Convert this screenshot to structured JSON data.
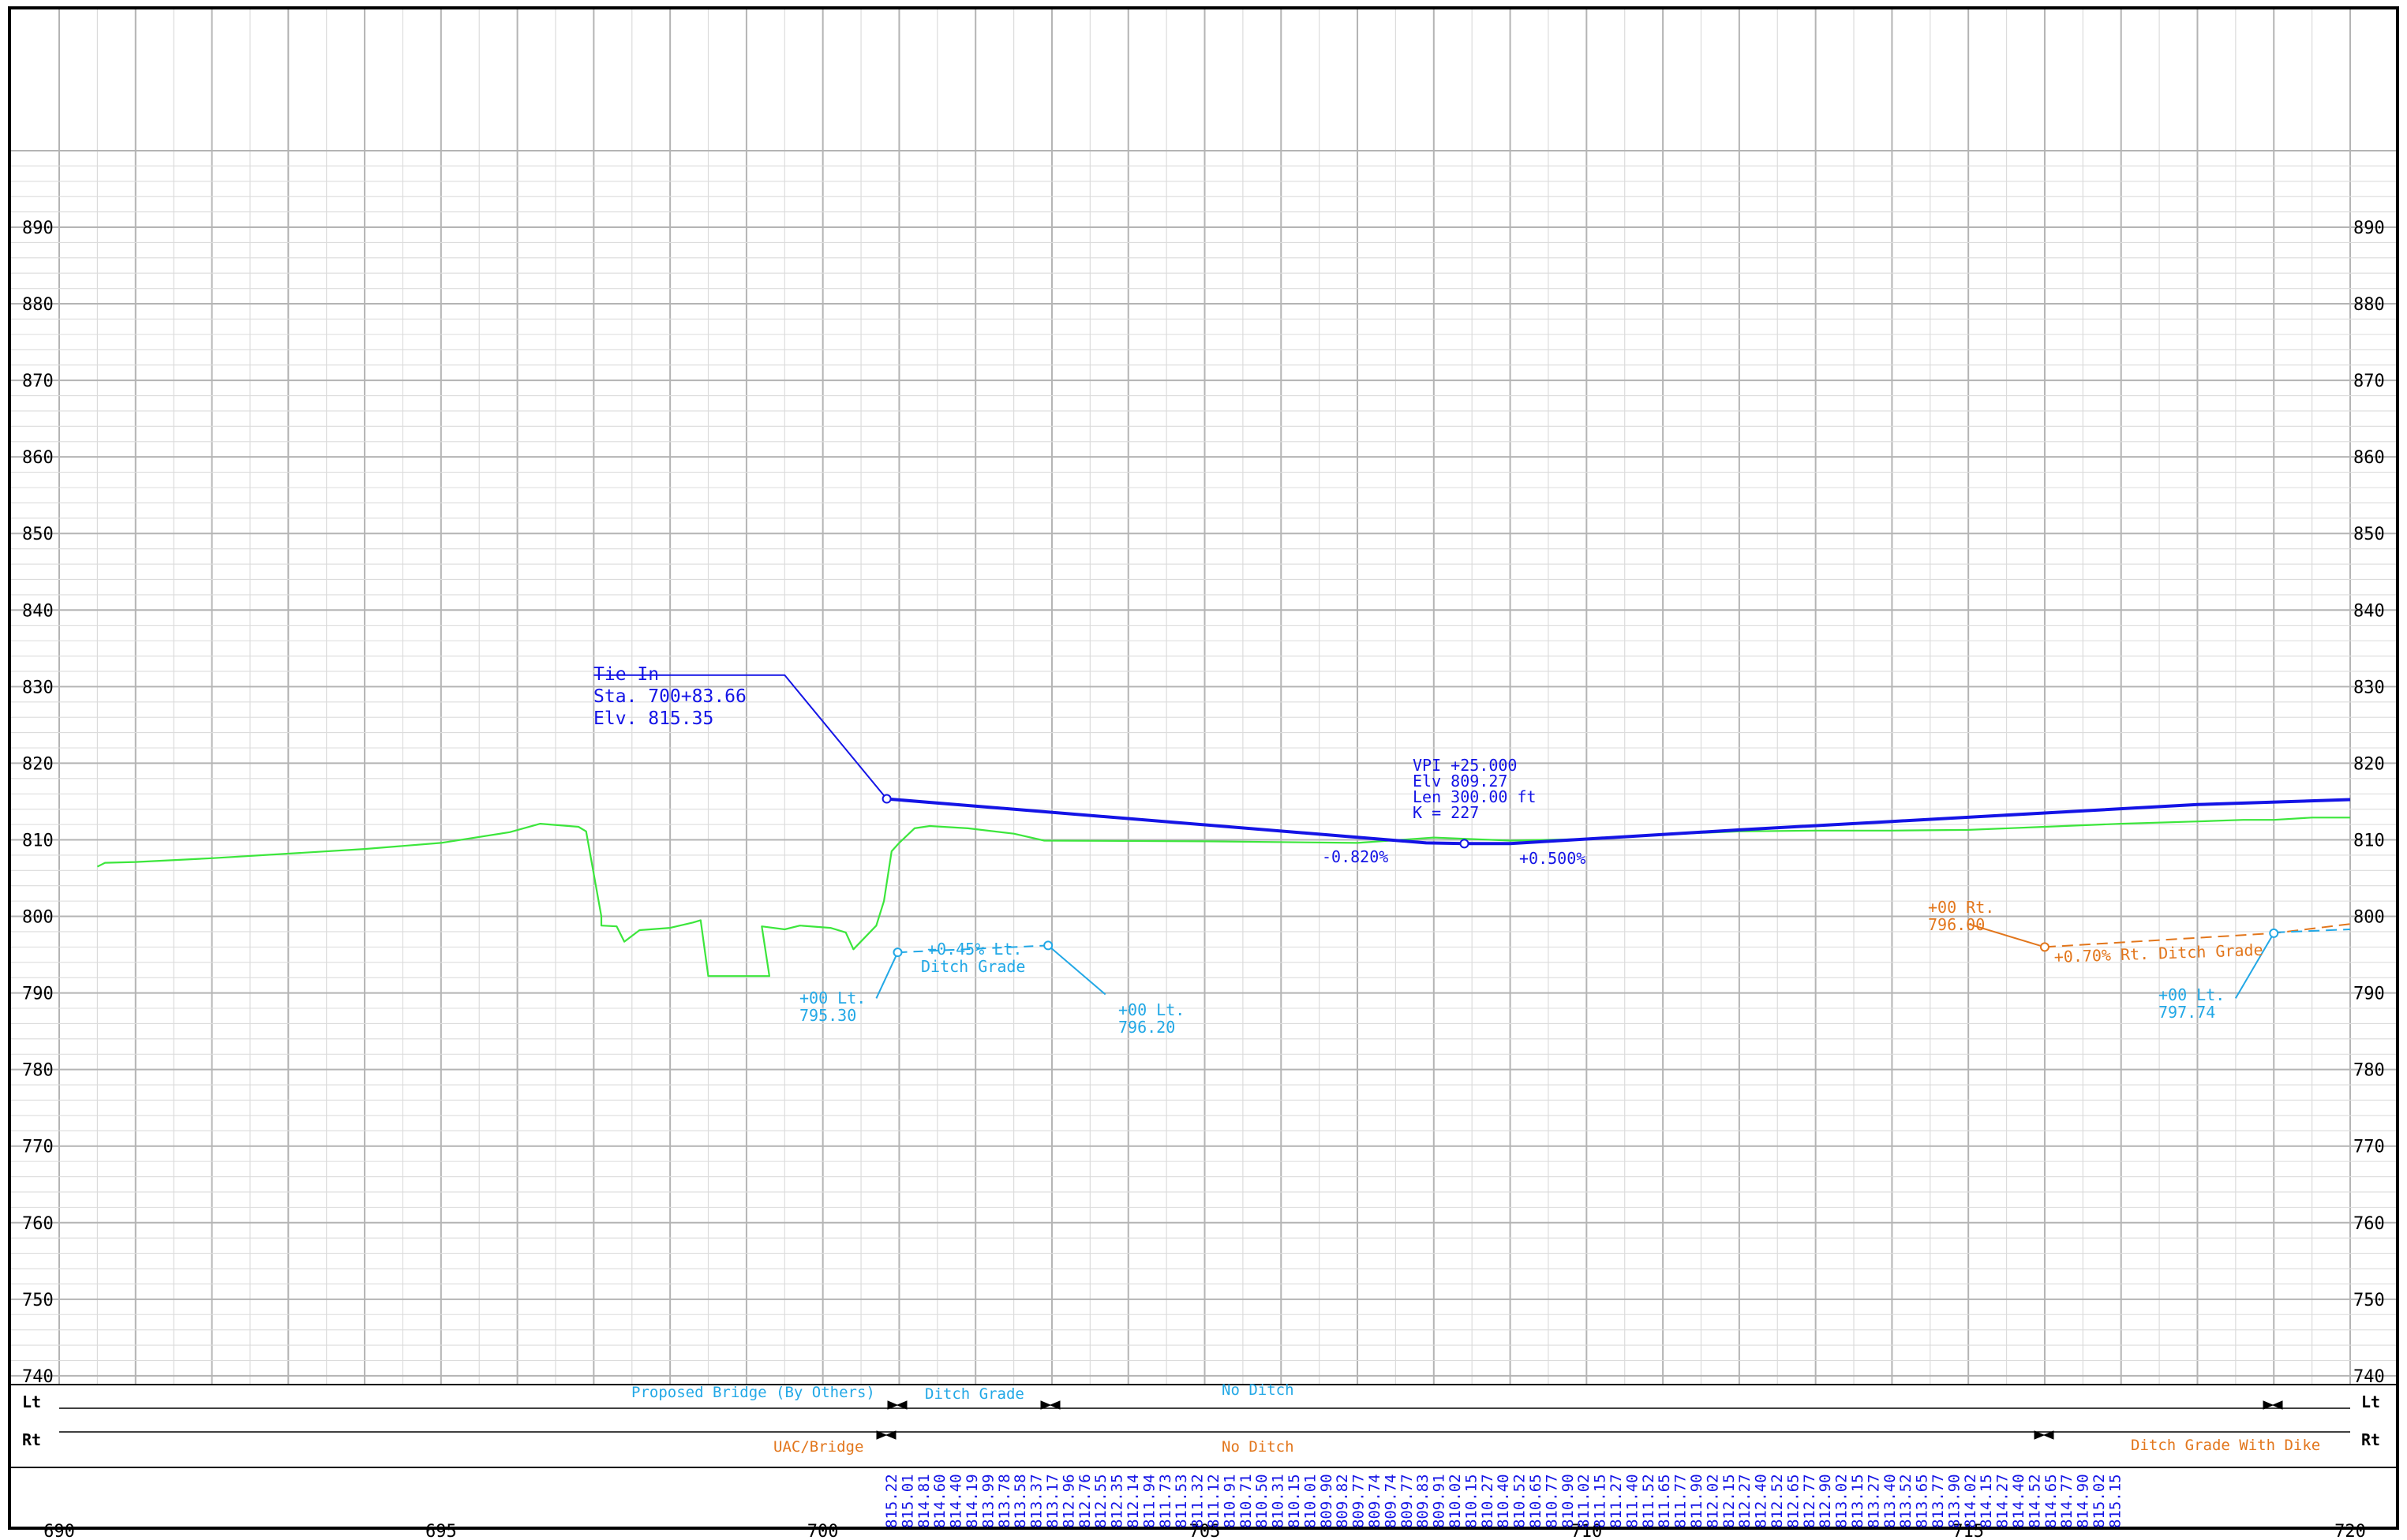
{
  "axes": {
    "elevation_ticks": [
      "740",
      "750",
      "760",
      "770",
      "780",
      "790",
      "800",
      "810",
      "820",
      "830",
      "840",
      "850",
      "860",
      "870",
      "880",
      "890"
    ],
    "station_ticks": [
      "690",
      "695",
      "700",
      "705",
      "710",
      "715",
      "720"
    ]
  },
  "colors": {
    "ground": "#3ce63c",
    "profile": "#1414e6",
    "ditch_left": "#22a8e6",
    "ditch_right": "#e2761c",
    "grid_major": "#b4b4b4",
    "grid_minor": "#dcdcdc"
  },
  "annotations": {
    "tie_in": {
      "title": "Tie In",
      "station": "Sta. 700+83.66",
      "elevation": "Elv. 815.35"
    },
    "vpi": {
      "line1": "VPI +25.000",
      "line2": "Elv 809.27",
      "line3": "Len 300.00 ft",
      "line4": "K = 227"
    },
    "grade_in": "-0.820%",
    "grade_out": "+0.500%",
    "left_ditch": {
      "start_station": "+00 Lt.",
      "start_elev": "795.30",
      "grade": "+0.45% Lt.",
      "grade_label": "Ditch Grade",
      "end_station": "+00 Lt.",
      "end_elev": "796.20"
    },
    "right_ditch": {
      "start_station": "+00 Rt.",
      "start_elev": "796.00",
      "grade": "+0.70% Rt. Ditch Grade"
    },
    "right_end_left": {
      "station": "+00 Lt.",
      "elev": "797.74"
    }
  },
  "bands": {
    "lt_label": "Lt",
    "rt_label": "Rt",
    "lt_segments": [
      "Proposed Bridge (By Others)",
      "Ditch Grade",
      "No Ditch"
    ],
    "rt_segments": [
      "UAC/Bridge",
      "No Ditch",
      "Ditch Grade With Dike"
    ]
  },
  "elevation_labels": [
    "815.22",
    "815.01",
    "814.81",
    "814.60",
    "814.40",
    "814.19",
    "813.99",
    "813.78",
    "813.58",
    "813.37",
    "813.17",
    "812.96",
    "812.76",
    "812.55",
    "812.35",
    "812.14",
    "811.94",
    "811.73",
    "811.53",
    "811.32",
    "811.12",
    "810.91",
    "810.71",
    "810.50",
    "810.31",
    "810.15",
    "810.01",
    "809.90",
    "809.82",
    "809.77",
    "809.74",
    "809.74",
    "809.77",
    "809.83",
    "809.91",
    "810.02",
    "810.15",
    "810.27",
    "810.40",
    "810.52",
    "810.65",
    "810.77",
    "810.90",
    "811.02",
    "811.15",
    "811.27",
    "811.40",
    "811.52",
    "811.65",
    "811.77",
    "811.90",
    "812.02",
    "812.15",
    "812.27",
    "812.40",
    "812.52",
    "812.65",
    "812.77",
    "812.90",
    "813.02",
    "813.15",
    "813.27",
    "813.40",
    "813.52",
    "813.65",
    "813.77",
    "813.90",
    "814.02",
    "814.15",
    "814.27",
    "814.40",
    "814.52",
    "814.65",
    "814.77",
    "814.90",
    "815.02",
    "815.15"
  ],
  "chart_data": {
    "type": "line",
    "xlabel": "",
    "ylabel": "",
    "xlim": [
      690,
      720
    ],
    "ylim": [
      737,
      900
    ],
    "series": [
      {
        "role": "existing_ground",
        "values": [
          [
            690.5,
            806.5
          ],
          [
            690.6,
            807
          ],
          [
            691,
            807.1
          ],
          [
            692,
            807.6
          ],
          [
            693,
            808.2
          ],
          [
            694,
            808.8
          ],
          [
            695,
            809.6
          ],
          [
            695.9,
            811
          ],
          [
            696.3,
            812.1
          ],
          [
            696.8,
            811.7
          ],
          [
            696.9,
            811.1
          ],
          [
            697.1,
            800
          ],
          [
            697.1,
            798.8
          ],
          [
            697.3,
            798.7
          ],
          [
            697.4,
            796.7
          ],
          [
            697.6,
            798.2
          ],
          [
            698,
            798.5
          ],
          [
            698.3,
            799.2
          ],
          [
            698.4,
            799.5
          ],
          [
            698.5,
            792.2
          ],
          [
            699,
            792.2
          ],
          [
            699.2,
            792.2
          ],
          [
            699.3,
            792.2
          ],
          [
            699.2,
            798.7
          ],
          [
            699.5,
            798.3
          ],
          [
            699.7,
            798.8
          ],
          [
            700.1,
            798.5
          ],
          [
            700.3,
            797.9
          ],
          [
            700.4,
            795.7
          ],
          [
            700.7,
            798.8
          ],
          [
            700.8,
            802
          ],
          [
            700.9,
            808.5
          ],
          [
            701,
            809.6
          ],
          [
            701.2,
            811.5
          ],
          [
            701.4,
            811.8
          ],
          [
            701.9,
            811.5
          ],
          [
            702.5,
            810.8
          ],
          [
            702.9,
            809.9
          ],
          [
            705,
            809.8
          ],
          [
            707,
            809.6
          ],
          [
            708,
            810.3
          ],
          [
            709,
            809.9
          ],
          [
            710,
            810.1
          ],
          [
            711,
            810.7
          ],
          [
            712,
            811.1
          ],
          [
            713,
            811.2
          ],
          [
            714,
            811.2
          ],
          [
            715,
            811.3
          ],
          [
            716,
            811.7
          ],
          [
            717,
            812.1
          ],
          [
            718,
            812.4
          ],
          [
            718.6,
            812.6
          ],
          [
            719,
            812.6
          ],
          [
            719.5,
            812.9
          ],
          [
            720,
            812.9
          ]
        ]
      },
      {
        "role": "proposed_profile",
        "values": [
          [
            700.8366,
            815.35
          ],
          [
            707.9,
            809.6
          ],
          [
            708.4,
            809.5
          ],
          [
            709,
            809.5
          ],
          [
            710,
            810.1
          ],
          [
            712,
            811.3
          ],
          [
            714,
            812.4
          ],
          [
            716,
            813.5
          ],
          [
            718,
            814.6
          ],
          [
            720,
            815.25
          ]
        ]
      },
      {
        "role": "tie_in_leader",
        "values": [
          [
            697,
            831.5
          ],
          [
            699.5,
            831.5
          ],
          [
            700.8366,
            815.35
          ]
        ]
      },
      {
        "role": "left_ditch",
        "values": [
          [
            700.98,
            795.3
          ],
          [
            702.95,
            796.2
          ]
        ]
      },
      {
        "role": "left_ditch_leader_start",
        "values": [
          [
            700.7,
            789.3
          ],
          [
            700.98,
            795.3
          ]
        ]
      },
      {
        "role": "left_ditch_leader_end",
        "values": [
          [
            702.95,
            796.2
          ],
          [
            703.7,
            789.8
          ]
        ]
      },
      {
        "role": "right_ditch",
        "values": [
          [
            716,
            796
          ],
          [
            719,
            797.8
          ],
          [
            720,
            799
          ]
        ]
      },
      {
        "role": "right_ditch_leader",
        "values": [
          [
            715,
            799
          ],
          [
            716,
            796
          ]
        ]
      },
      {
        "role": "right_end_leader",
        "values": [
          [
            719,
            797.8
          ],
          [
            718.5,
            789.3
          ]
        ]
      },
      {
        "role": "right_end_tail",
        "values": [
          [
            719,
            797.9
          ],
          [
            720,
            798.3
          ]
        ]
      }
    ]
  }
}
